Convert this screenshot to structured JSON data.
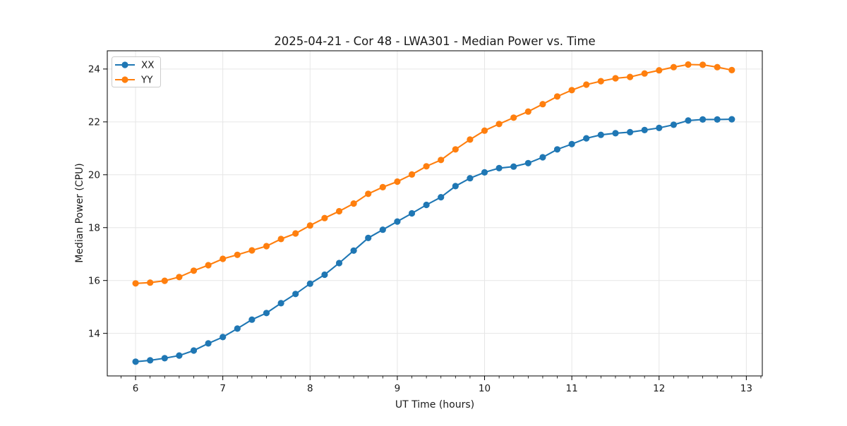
{
  "chart_data": {
    "type": "line",
    "title": "2025-04-21 - Cor 48 - LWA301 - Median Power vs. Time",
    "xlabel": "UT Time (hours)",
    "ylabel": "Median Power (CPU)",
    "xlim": [
      5.676,
      13.183
    ],
    "ylim": [
      12.39,
      24.69
    ],
    "x_major_ticks": [
      6,
      7,
      8,
      9,
      10,
      11,
      12,
      13
    ],
    "y_major_ticks": [
      14,
      16,
      18,
      20,
      22,
      24
    ],
    "x_minor_step": 0.166667,
    "grid": true,
    "legend_position": "upper-left",
    "grid_color": "#e6e6e6",
    "x": [
      6.0,
      6.1667,
      6.3333,
      6.5,
      6.6667,
      6.8333,
      7.0,
      7.1667,
      7.3333,
      7.5,
      7.6667,
      7.8333,
      8.0,
      8.1667,
      8.3333,
      8.5,
      8.6667,
      8.8333,
      9.0,
      9.1667,
      9.3333,
      9.5,
      9.6667,
      9.8333,
      10.0,
      10.1667,
      10.3333,
      10.5,
      10.6667,
      10.8333,
      11.0,
      11.1667,
      11.3333,
      11.5,
      11.6667,
      11.8333,
      12.0,
      12.1667,
      12.3333,
      12.5,
      12.6667,
      12.8333
    ],
    "series": [
      {
        "name": "XX",
        "color": "#1f77b4",
        "values": [
          12.93,
          12.98,
          13.06,
          13.16,
          13.35,
          13.62,
          13.86,
          14.18,
          14.52,
          14.77,
          15.14,
          15.49,
          15.88,
          16.22,
          16.66,
          17.13,
          17.61,
          17.92,
          18.23,
          18.54,
          18.86,
          19.15,
          19.57,
          19.87,
          20.09,
          20.25,
          20.31,
          20.44,
          20.66,
          20.96,
          21.16,
          21.38,
          21.51,
          21.57,
          21.61,
          21.69,
          21.77,
          21.89,
          22.05,
          22.09,
          22.09,
          22.1
        ]
      },
      {
        "name": "YY",
        "color": "#ff7f0e",
        "values": [
          15.89,
          15.92,
          15.99,
          16.13,
          16.37,
          16.58,
          16.82,
          16.97,
          17.14,
          17.3,
          17.57,
          17.78,
          18.08,
          18.36,
          18.62,
          18.91,
          19.28,
          19.53,
          19.74,
          20.01,
          20.32,
          20.56,
          20.96,
          21.33,
          21.67,
          21.92,
          22.16,
          22.39,
          22.67,
          22.96,
          23.2,
          23.41,
          23.54,
          23.65,
          23.7,
          23.83,
          23.95,
          24.07,
          24.17,
          24.16,
          24.07,
          23.96
        ]
      }
    ]
  }
}
